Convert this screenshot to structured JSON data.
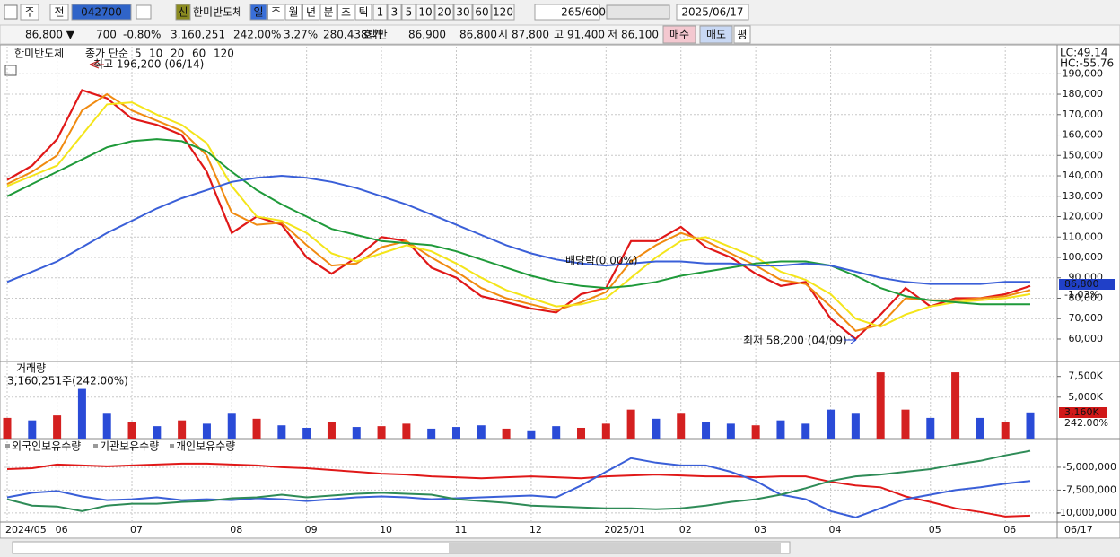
{
  "toolbar": {
    "period": "주",
    "market": "전",
    "code": "042700",
    "new": "신",
    "name": "한미반도체",
    "units": [
      "일",
      "주",
      "월",
      "년",
      "분",
      "초",
      "틱"
    ],
    "intervals": [
      "1",
      "3",
      "5",
      "10",
      "20",
      "30",
      "60",
      "120"
    ],
    "count": "265",
    "max": "/600",
    "date": "2025/06/17"
  },
  "quote": {
    "price": "86,800 ▼",
    "change": "700",
    "change_pct": "-0.80%",
    "volume": "3,160,251",
    "volume_ratio": "242.00%",
    "turnover": "3.27%",
    "amount": "280,438백만",
    "bid_label": "호가",
    "ask": "86,900",
    "bid": "86,800",
    "open_label": "시",
    "open": "87,800",
    "high_label": "고",
    "high": "91,400",
    "low_label": "저",
    "low": "86,100",
    "buy": "매수",
    "sell": "매도",
    "avg": "평"
  },
  "chart_data": [
    {
      "type": "line",
      "title": "한미반도체",
      "legend_label": "종가 단순",
      "categories": [
        "2024/05",
        null,
        "06",
        null,
        null,
        "07",
        null,
        null,
        null,
        "08",
        null,
        null,
        "09",
        null,
        null,
        "10",
        null,
        null,
        "11",
        null,
        null,
        "12",
        null,
        null,
        "2025/01",
        null,
        null,
        "02",
        null,
        null,
        "03",
        null,
        null,
        "04",
        null,
        null,
        null,
        "05",
        null,
        null,
        "06",
        null
      ],
      "series": [
        {
          "name": "5",
          "color": "#e01818",
          "values": [
            138000,
            145000,
            158000,
            182000,
            178000,
            168000,
            165000,
            160000,
            142000,
            112000,
            120000,
            116000,
            100000,
            92000,
            100000,
            110000,
            108000,
            95000,
            90000,
            81000,
            78000,
            75000,
            73000,
            82000,
            85000,
            108000,
            108000,
            115000,
            105000,
            100000,
            92000,
            86000,
            88000,
            70000,
            60000,
            72000,
            85000,
            76000,
            80000,
            80000,
            82000,
            86000
          ]
        },
        {
          "name": "10",
          "color": "#f08a10",
          "values": [
            136000,
            142000,
            150000,
            172000,
            180000,
            172000,
            167000,
            162000,
            150000,
            122000,
            116000,
            117000,
            106000,
            96000,
            97000,
            105000,
            108000,
            100000,
            93000,
            85000,
            80000,
            77000,
            74000,
            78000,
            83000,
            98000,
            106000,
            112000,
            108000,
            102000,
            96000,
            89000,
            87000,
            76000,
            64000,
            67000,
            80000,
            79000,
            79000,
            80000,
            81000,
            84000
          ]
        },
        {
          "name": "20",
          "color": "#f4e51a",
          "values": [
            135000,
            140000,
            145000,
            160000,
            175000,
            176000,
            170000,
            165000,
            156000,
            135000,
            120000,
            118000,
            112000,
            102000,
            98000,
            102000,
            106000,
            103000,
            97000,
            90000,
            84000,
            80000,
            76000,
            77000,
            80000,
            90000,
            100000,
            108000,
            110000,
            105000,
            100000,
            93000,
            89000,
            82000,
            70000,
            66000,
            72000,
            76000,
            78000,
            79000,
            80000,
            82000
          ]
        },
        {
          "name": "60",
          "color": "#1f9a3a",
          "values": [
            130000,
            136000,
            142000,
            148000,
            154000,
            157000,
            158000,
            157000,
            152000,
            142000,
            133000,
            126000,
            120000,
            114000,
            111000,
            108000,
            107000,
            106000,
            103000,
            99000,
            95000,
            91000,
            88000,
            86000,
            85000,
            86000,
            88000,
            91000,
            93000,
            95000,
            97000,
            98000,
            98000,
            96000,
            91000,
            85000,
            81000,
            79000,
            78000,
            77000,
            77000,
            77000
          ]
        },
        {
          "name": "120",
          "color": "#3a5fd8",
          "values": [
            88000,
            93000,
            98000,
            105000,
            112000,
            118000,
            124000,
            129000,
            133000,
            137000,
            139000,
            140000,
            139000,
            137000,
            134000,
            130000,
            126000,
            121000,
            116000,
            111000,
            106000,
            102000,
            99000,
            97000,
            96000,
            97000,
            98000,
            98000,
            97000,
            97000,
            96000,
            96000,
            97000,
            96000,
            93000,
            90000,
            88000,
            87000,
            87000,
            87000,
            88000,
            88000
          ]
        }
      ],
      "ylim": [
        49000,
        202000
      ],
      "yticks": [
        {
          "value": 60000,
          "label": "60,000"
        },
        {
          "value": 70000,
          "label": "70,000"
        },
        {
          "value": 80000,
          "label": "80,000"
        },
        {
          "value": 90000,
          "label": "90,000"
        },
        {
          "value": 100000,
          "label": "100,000"
        },
        {
          "value": 110000,
          "label": "110,000"
        },
        {
          "value": 120000,
          "label": "120,000"
        },
        {
          "value": 130000,
          "label": "130,000"
        },
        {
          "value": 140000,
          "label": "140,000"
        },
        {
          "value": 150000,
          "label": "150,000"
        },
        {
          "value": 160000,
          "label": "160,000"
        },
        {
          "value": 170000,
          "label": "170,000"
        },
        {
          "value": 180000,
          "label": "180,000"
        },
        {
          "value": 190000,
          "label": "190,000"
        }
      ],
      "grid": true,
      "annotations": {
        "high": "최고 196,200 (06/14)",
        "dividend": "배당락(0.00%)",
        "low": "최저 58,200 (04/09)",
        "lc": "LC:49.14",
        "hc": "HC:-55.76",
        "price_tag": "86,800",
        "change_tag": "-1.03%"
      }
    },
    {
      "type": "bar",
      "title": "거래량",
      "subtitle": "3,160,251주(242.00%)",
      "values": [
        2500000,
        2200000,
        2800000,
        6000000,
        3000000,
        2000000,
        1500000,
        2200000,
        1800000,
        3000000,
        2400000,
        1600000,
        1300000,
        2000000,
        1400000,
        1500000,
        1800000,
        1200000,
        1400000,
        1600000,
        1200000,
        1000000,
        1500000,
        1300000,
        1800000,
        3500000,
        2400000,
        3000000,
        2000000,
        1800000,
        1600000,
        2200000,
        1800000,
        3500000,
        3000000,
        8000000,
        3500000,
        2500000,
        8000000,
        2500000,
        2000000,
        3160251
      ],
      "colors": [
        "#d42020",
        "#2a4bd7",
        "#d42020",
        "#2a4bd7",
        "#2a4bd7",
        "#d42020",
        "#2a4bd7",
        "#d42020",
        "#2a4bd7",
        "#2a4bd7",
        "#d42020",
        "#2a4bd7",
        "#2a4bd7",
        "#d42020",
        "#2a4bd7",
        "#d42020",
        "#d42020",
        "#2a4bd7",
        "#2a4bd7",
        "#2a4bd7",
        "#d42020",
        "#2a4bd7",
        "#2a4bd7",
        "#d42020",
        "#d42020",
        "#d42020",
        "#2a4bd7",
        "#d42020",
        "#2a4bd7",
        "#2a4bd7",
        "#d42020",
        "#2a4bd7",
        "#2a4bd7",
        "#2a4bd7",
        "#2a4bd7",
        "#d42020",
        "#d42020",
        "#2a4bd7",
        "#d42020",
        "#2a4bd7",
        "#d42020",
        "#2a4bd7"
      ],
      "ylim": [
        0,
        9200000
      ],
      "yticks": [
        {
          "value": 5000000,
          "label": "5,000K"
        },
        {
          "value": 7500000,
          "label": "7,500K"
        }
      ],
      "grid": true,
      "tags": {
        "volume": "3,160K",
        "ratio": "242.00%"
      }
    },
    {
      "type": "line",
      "series": [
        {
          "name": "외국인보유수량",
          "color": "#e01818",
          "values": [
            -5200000,
            -5100000,
            -4700000,
            -4800000,
            -4900000,
            -4800000,
            -4700000,
            -4600000,
            -4600000,
            -4700000,
            -4800000,
            -5000000,
            -5100000,
            -5300000,
            -5500000,
            -5700000,
            -5800000,
            -6000000,
            -6100000,
            -6200000,
            -6100000,
            -6000000,
            -6100000,
            -6200000,
            -6000000,
            -5900000,
            -5800000,
            -5900000,
            -6000000,
            -6000000,
            -6100000,
            -6000000,
            -6000000,
            -6600000,
            -7000000,
            -7200000,
            -8200000,
            -8800000,
            -9500000,
            -9900000,
            -10400000,
            -10300000
          ]
        },
        {
          "name": "기관보유수량",
          "color": "#3a5fd8",
          "values": [
            -8300000,
            -7800000,
            -7600000,
            -8200000,
            -8600000,
            -8500000,
            -8300000,
            -8600000,
            -8500000,
            -8600000,
            -8400000,
            -8500000,
            -8700000,
            -8500000,
            -8300000,
            -8200000,
            -8300000,
            -8500000,
            -8400000,
            -8300000,
            -8200000,
            -8100000,
            -8300000,
            -7000000,
            -5500000,
            -4000000,
            -4500000,
            -4800000,
            -4800000,
            -5500000,
            -6500000,
            -8000000,
            -8500000,
            -9800000,
            -10500000,
            -9500000,
            -8500000,
            -8000000,
            -7500000,
            -7200000,
            -6800000,
            -6500000
          ]
        },
        {
          "name": "개인보유수량",
          "color": "#2e8b57",
          "values": [
            -8500000,
            -9200000,
            -9300000,
            -9800000,
            -9200000,
            -9000000,
            -9000000,
            -8800000,
            -8700000,
            -8400000,
            -8300000,
            -8000000,
            -8300000,
            -8100000,
            -7900000,
            -7800000,
            -7900000,
            -8000000,
            -8500000,
            -8700000,
            -8900000,
            -9200000,
            -9300000,
            -9400000,
            -9500000,
            -9500000,
            -9600000,
            -9500000,
            -9200000,
            -8800000,
            -8500000,
            -8000000,
            -7300000,
            -6500000,
            -6000000,
            -5800000,
            -5500000,
            -5200000,
            -4700000,
            -4300000,
            -3700000,
            -3200000
          ]
        }
      ],
      "ylim": [
        -11000000,
        -1960000
      ],
      "yticks": [
        {
          "value": -5000000,
          "label": "-5,000,000"
        },
        {
          "value": -7500000,
          "label": "-7,500,000"
        },
        {
          "value": -10000000,
          "label": "-10,000,000"
        }
      ],
      "grid": true,
      "x_end_label": "06/17"
    }
  ]
}
